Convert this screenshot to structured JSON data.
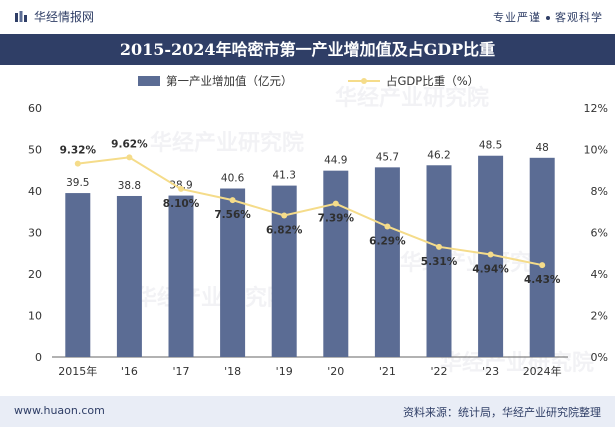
{
  "header": {
    "brand": "华经情报网",
    "tagline_left": "专业严谨",
    "tagline_right": "客观科学"
  },
  "footer": {
    "url": "www.huaon.com",
    "source": "资料来源：统计局，华经产业研究院整理"
  },
  "colors": {
    "bar": "#5b6c94",
    "line": "#f5dc8a",
    "title_bg": "#2f3e66"
  },
  "chart_data": {
    "type": "bar",
    "title": "2015-2024年哈密市第一产业增加值及占GDP比重",
    "categories": [
      "2015年",
      "'16",
      "'17",
      "'18",
      "'19",
      "'20",
      "'21",
      "'22",
      "'23",
      "2024年"
    ],
    "series": [
      {
        "name": "第一产业增加值（亿元）",
        "type": "bar",
        "axis": "left",
        "values": [
          39.5,
          38.8,
          38.9,
          40.6,
          41.3,
          44.9,
          45.7,
          46.2,
          48.5,
          48
        ],
        "labels": [
          "39.5",
          "38.8",
          "38.9",
          "40.6",
          "41.3",
          "44.9",
          "45.7",
          "46.2",
          "48.5",
          "48"
        ]
      },
      {
        "name": "占GDP比重（%）",
        "type": "line",
        "axis": "right",
        "values": [
          9.32,
          9.62,
          8.1,
          7.56,
          6.82,
          7.39,
          6.29,
          5.31,
          4.94,
          4.43
        ],
        "labels": [
          "9.32%",
          "9.62%",
          "8.10%",
          "7.56%",
          "6.82%",
          "7.39%",
          "6.29%",
          "5.31%",
          "4.94%",
          "4.43%"
        ]
      }
    ],
    "y_left": {
      "ylim": [
        0,
        60
      ],
      "ticks": [
        "0",
        "10",
        "20",
        "30",
        "40",
        "50",
        "60"
      ]
    },
    "y_right": {
      "ylim": [
        0,
        12
      ],
      "ticks": [
        "0%",
        "2%",
        "4%",
        "6%",
        "8%",
        "10%",
        "12%"
      ]
    },
    "legend_position": "top-center",
    "grid": false
  }
}
